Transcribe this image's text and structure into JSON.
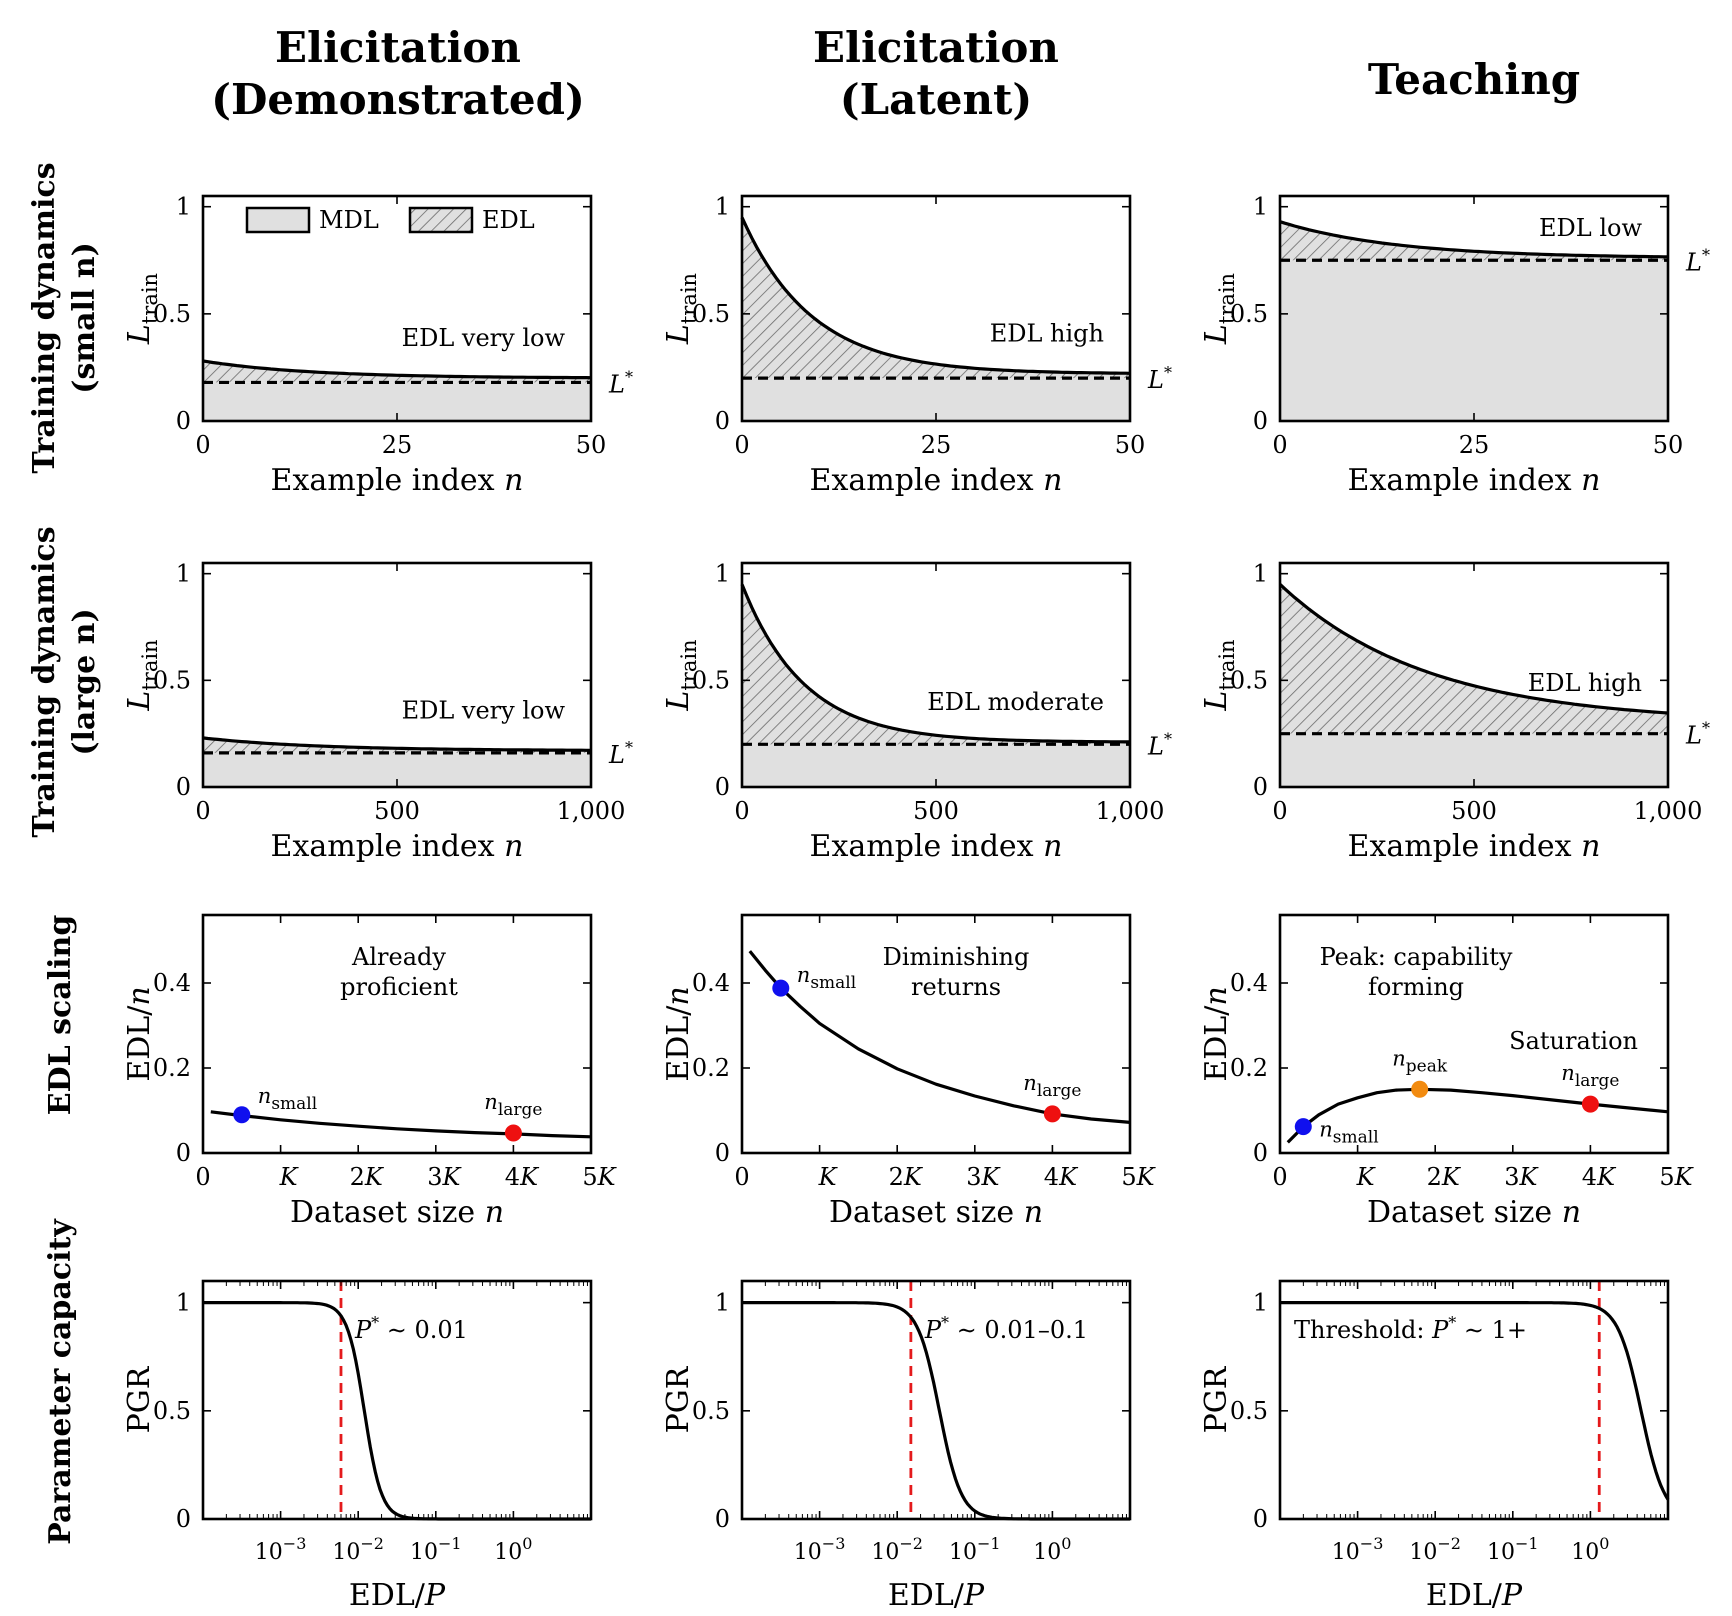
{
  "columns": [
    {
      "line1": "Elicitation",
      "line2": "(Demonstrated)"
    },
    {
      "line1": "Elicitation",
      "line2": "(Latent)"
    },
    {
      "line1": "Teaching",
      "line2": ""
    }
  ],
  "rows": [
    {
      "line1": "Training dynamics",
      "line2": "(small n)"
    },
    {
      "line1": "Training dynamics",
      "line2": "(large n)"
    },
    {
      "line1": "EDL scaling",
      "line2": ""
    },
    {
      "line1": "Parameter capacity",
      "line2": ""
    }
  ],
  "legend": {
    "mdl": "MDL",
    "edl": "EDL"
  },
  "colors": {
    "fill": "#e0e0e0",
    "blue": "#1010ee",
    "red": "#ee1010",
    "orange": "#f28b10",
    "threshold": "#e41a1c"
  },
  "chart_data": [
    {
      "row": 0,
      "col": 0,
      "type": "area",
      "title": "",
      "xlabel": "Example index n",
      "ylabel": "L_train",
      "xlim": [
        0,
        50
      ],
      "ylim": [
        0,
        1.05
      ],
      "xticks": [
        0,
        25,
        50
      ],
      "xtick_labels": [
        "0",
        "25",
        "50"
      ],
      "yticks": [
        0,
        0.5,
        1
      ],
      "ytick_labels": [
        "0",
        "0.5",
        "1"
      ],
      "lstar": 0.18,
      "lstar_label": "L*",
      "curve": {
        "start": 0.28,
        "end": 0.2,
        "tau": 14
      },
      "annotation": "EDL very low",
      "show_legend": true
    },
    {
      "row": 0,
      "col": 1,
      "type": "area",
      "title": "",
      "xlabel": "Example index n",
      "ylabel": "L_train",
      "xlim": [
        0,
        50
      ],
      "ylim": [
        0,
        1.05
      ],
      "xticks": [
        0,
        25,
        50
      ],
      "xtick_labels": [
        "0",
        "25",
        "50"
      ],
      "yticks": [
        0,
        0.5,
        1
      ],
      "ytick_labels": [
        "0",
        "0.5",
        "1"
      ],
      "lstar": 0.2,
      "lstar_label": "L*",
      "curve": {
        "start": 0.95,
        "end": 0.22,
        "tau": 9
      },
      "annotation": "EDL high",
      "show_legend": false
    },
    {
      "row": 0,
      "col": 2,
      "type": "area",
      "title": "",
      "xlabel": "Example index n",
      "ylabel": "L_train",
      "xlim": [
        0,
        50
      ],
      "ylim": [
        0,
        1.05
      ],
      "xticks": [
        0,
        25,
        50
      ],
      "xtick_labels": [
        "0",
        "25",
        "50"
      ],
      "yticks": [
        0,
        0.5,
        1
      ],
      "ytick_labels": [
        "0",
        "0.5",
        "1"
      ],
      "lstar": 0.75,
      "lstar_label": "L*",
      "curve": {
        "start": 0.93,
        "end": 0.76,
        "tau": 15
      },
      "annotation": "EDL low",
      "show_legend": false
    },
    {
      "row": 1,
      "col": 0,
      "type": "area",
      "title": "",
      "xlabel": "Example index n",
      "ylabel": "L_train",
      "xlim": [
        0,
        1000
      ],
      "ylim": [
        0,
        1.05
      ],
      "xticks": [
        0,
        500,
        1000
      ],
      "xtick_labels": [
        "0",
        "500",
        "1,000"
      ],
      "yticks": [
        0,
        0.5,
        1
      ],
      "ytick_labels": [
        "0",
        "0.5",
        "1"
      ],
      "lstar": 0.16,
      "lstar_label": "L*",
      "curve": {
        "start": 0.23,
        "end": 0.17,
        "tau": 300
      },
      "annotation": "EDL very low",
      "show_legend": false
    },
    {
      "row": 1,
      "col": 1,
      "type": "area",
      "title": "",
      "xlabel": "Example index n",
      "ylabel": "L_train",
      "xlim": [
        0,
        1000
      ],
      "ylim": [
        0,
        1.05
      ],
      "xticks": [
        0,
        500,
        1000
      ],
      "xtick_labels": [
        "0",
        "500",
        "1,000"
      ],
      "yticks": [
        0,
        0.5,
        1
      ],
      "ytick_labels": [
        "0",
        "0.5",
        "1"
      ],
      "lstar": 0.2,
      "lstar_label": "L*",
      "curve": {
        "start": 0.95,
        "end": 0.21,
        "tau": 160
      },
      "annotation": "EDL moderate",
      "show_legend": false
    },
    {
      "row": 1,
      "col": 2,
      "type": "area",
      "title": "",
      "xlabel": "Example index n",
      "ylabel": "L_train",
      "xlim": [
        0,
        1000
      ],
      "ylim": [
        0,
        1.05
      ],
      "xticks": [
        0,
        500,
        1000
      ],
      "xtick_labels": [
        "0",
        "500",
        "1,000"
      ],
      "yticks": [
        0,
        0.5,
        1
      ],
      "ytick_labels": [
        "0",
        "0.5",
        "1"
      ],
      "lstar": 0.25,
      "lstar_label": "L*",
      "curve": {
        "start": 0.95,
        "end": 0.3,
        "tau": 380
      },
      "annotation": "EDL high",
      "show_legend": false
    },
    {
      "row": 2,
      "col": 0,
      "type": "line",
      "title": "",
      "xlabel": "Dataset size n",
      "ylabel": "EDL/n",
      "xlim": [
        0,
        5000
      ],
      "ylim": [
        0,
        0.56
      ],
      "xticks": [
        0,
        1000,
        2000,
        3000,
        4000,
        5000
      ],
      "xtick_labels": [
        "0",
        "K",
        "2K",
        "3K",
        "4K",
        "5K"
      ],
      "yticks": [
        0,
        0.2,
        0.4
      ],
      "ytick_labels": [
        "0",
        "0.2",
        "0.4"
      ],
      "curve_x": [
        100,
        500,
        1000,
        1500,
        2000,
        2500,
        3000,
        3500,
        4000,
        4500,
        5000
      ],
      "curve_y": [
        0.097,
        0.088,
        0.078,
        0.07,
        0.063,
        0.057,
        0.052,
        0.048,
        0.045,
        0.041,
        0.038
      ],
      "points": [
        {
          "label": "n_small",
          "x": 500,
          "y": 0.09,
          "color": "blue"
        },
        {
          "label": "n_large",
          "x": 4000,
          "y": 0.047,
          "color": "red"
        }
      ],
      "annotation": [
        "Already",
        "proficient"
      ]
    },
    {
      "row": 2,
      "col": 1,
      "type": "line",
      "title": "",
      "xlabel": "Dataset size n",
      "ylabel": "EDL/n",
      "xlim": [
        0,
        5000
      ],
      "ylim": [
        0,
        0.56
      ],
      "xticks": [
        0,
        1000,
        2000,
        3000,
        4000,
        5000
      ],
      "xtick_labels": [
        "0",
        "K",
        "2K",
        "3K",
        "4K",
        "5K"
      ],
      "yticks": [
        0,
        0.2,
        0.4
      ],
      "ytick_labels": [
        "0",
        "0.2",
        "0.4"
      ],
      "curve_x": [
        100,
        300,
        500,
        750,
        1000,
        1500,
        2000,
        2500,
        3000,
        3500,
        4000,
        4500,
        5000
      ],
      "curve_y": [
        0.475,
        0.43,
        0.388,
        0.345,
        0.305,
        0.245,
        0.198,
        0.162,
        0.134,
        0.111,
        0.092,
        0.08,
        0.072
      ],
      "points": [
        {
          "label": "n_small",
          "x": 500,
          "y": 0.388,
          "color": "blue"
        },
        {
          "label": "n_large",
          "x": 4000,
          "y": 0.092,
          "color": "red"
        }
      ],
      "annotation": [
        "Diminishing",
        "returns"
      ]
    },
    {
      "row": 2,
      "col": 2,
      "type": "line",
      "title": "",
      "xlabel": "Dataset size n",
      "ylabel": "EDL/n",
      "xlim": [
        0,
        5000
      ],
      "ylim": [
        0,
        0.56
      ],
      "xticks": [
        0,
        1000,
        2000,
        3000,
        4000,
        5000
      ],
      "xtick_labels": [
        "0",
        "K",
        "2K",
        "3K",
        "4K",
        "5K"
      ],
      "yticks": [
        0,
        0.2,
        0.4
      ],
      "ytick_labels": [
        "0",
        "0.2",
        "0.4"
      ],
      "curve_x": [
        100,
        300,
        500,
        750,
        1000,
        1250,
        1500,
        1800,
        2200,
        2600,
        3000,
        3500,
        4000,
        4500,
        5000
      ],
      "curve_y": [
        0.025,
        0.062,
        0.09,
        0.115,
        0.13,
        0.142,
        0.148,
        0.15,
        0.148,
        0.142,
        0.135,
        0.125,
        0.115,
        0.106,
        0.097
      ],
      "points": [
        {
          "label": "n_small",
          "x": 300,
          "y": 0.062,
          "color": "blue"
        },
        {
          "label": "n_peak",
          "x": 1800,
          "y": 0.15,
          "color": "orange"
        },
        {
          "label": "n_large",
          "x": 4000,
          "y": 0.115,
          "color": "red"
        }
      ],
      "annotation": [
        "Peak: capability",
        "forming"
      ],
      "annotation2": "Saturation"
    },
    {
      "row": 3,
      "col": 0,
      "type": "line",
      "title": "",
      "xlabel": "EDL/P",
      "ylabel": "PGR",
      "xscale": "log",
      "xlim": [
        0.0001,
        10
      ],
      "ylim": [
        0,
        1.1
      ],
      "xticks": [
        0.001,
        0.01,
        0.1,
        1
      ],
      "xtick_labels": [
        "10^-3",
        "10^-2",
        "10^-1",
        "10^0"
      ],
      "yticks": [
        0,
        0.5,
        1
      ],
      "ytick_labels": [
        "0",
        "0.5",
        "1"
      ],
      "sigmoid_center": 0.012,
      "sigmoid_width": 0.11,
      "threshold_x": 0.006,
      "threshold_label": "P* ∼ 0.01",
      "threshold_label_side": "right"
    },
    {
      "row": 3,
      "col": 1,
      "type": "line",
      "title": "",
      "xlabel": "EDL/P",
      "ylabel": "PGR",
      "xscale": "log",
      "xlim": [
        0.0001,
        10
      ],
      "ylim": [
        0,
        1.1
      ],
      "xticks": [
        0.001,
        0.01,
        0.1,
        1
      ],
      "xtick_labels": [
        "10^-3",
        "10^-2",
        "10^-1",
        "10^0"
      ],
      "yticks": [
        0,
        0.5,
        1
      ],
      "ytick_labels": [
        "0",
        "0.5",
        "1"
      ],
      "sigmoid_center": 0.035,
      "sigmoid_width": 0.14,
      "threshold_x": 0.015,
      "threshold_label": "P* ∼ 0.01–0.1",
      "threshold_label_side": "right"
    },
    {
      "row": 3,
      "col": 2,
      "type": "line",
      "title": "",
      "xlabel": "EDL/P",
      "ylabel": "PGR",
      "xscale": "log",
      "xlim": [
        0.0001,
        10
      ],
      "ylim": [
        0,
        1.1
      ],
      "xticks": [
        0.001,
        0.01,
        0.1,
        1
      ],
      "xtick_labels": [
        "10^-3",
        "10^-2",
        "10^-1",
        "10^0"
      ],
      "yticks": [
        0,
        0.5,
        1
      ],
      "ytick_labels": [
        "0",
        "0.5",
        "1"
      ],
      "sigmoid_center": 4.5,
      "sigmoid_width": 0.15,
      "threshold_x": 1.3,
      "threshold_label": "Threshold: P* ∼ 1+",
      "threshold_label_side": "left"
    }
  ]
}
